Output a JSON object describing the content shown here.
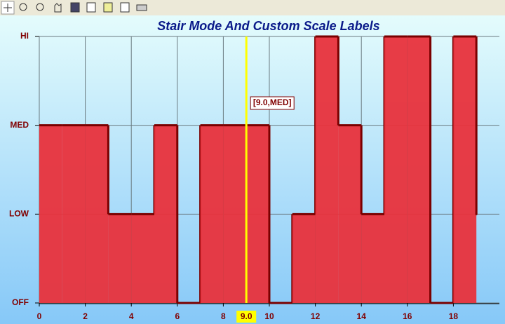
{
  "chart_data": {
    "type": "stair",
    "title": "Stair Mode And Custom Scale Labels",
    "x": [
      0,
      1,
      2,
      3,
      4,
      5,
      6,
      7,
      8,
      9,
      10,
      11,
      12,
      13,
      14,
      15,
      16,
      17,
      18,
      19
    ],
    "series": [
      {
        "color": "#e8323c",
        "line_color": "#7a0000",
        "values": [
          2,
          2,
          2,
          1,
          1,
          2,
          0,
          2,
          2,
          2,
          0,
          1,
          3,
          2,
          1,
          3,
          3,
          0,
          3,
          1
        ]
      }
    ],
    "xlim": [
      0,
      20
    ],
    "xticks": [
      0,
      2,
      4,
      6,
      8,
      10,
      12,
      14,
      16,
      18
    ],
    "ylim": [
      0,
      3
    ],
    "yticks": [
      {
        "value": 0,
        "label": "OFF"
      },
      {
        "value": 1,
        "label": "LOW"
      },
      {
        "value": 2,
        "label": "MED"
      },
      {
        "value": 3,
        "label": "HI"
      }
    ],
    "grid": true,
    "cursor": {
      "x": 9,
      "label": "[9.0,MED]",
      "axis_label": "9.0",
      "color": "#ffff00"
    }
  }
}
